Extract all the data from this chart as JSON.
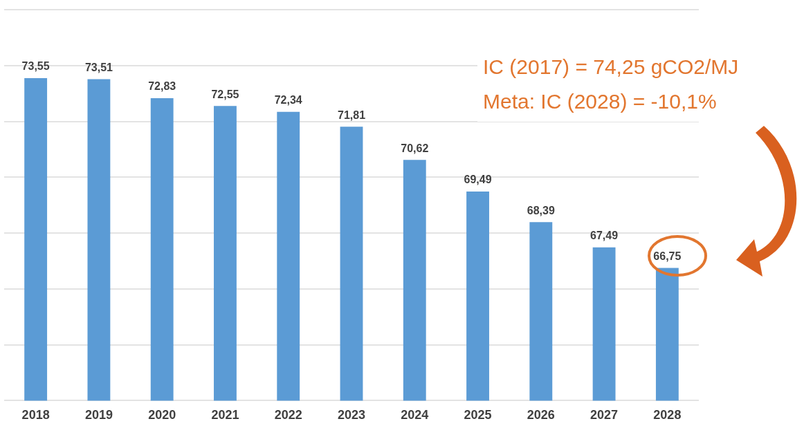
{
  "chart_data": {
    "type": "bar",
    "categories": [
      "2018",
      "2019",
      "2020",
      "2021",
      "2022",
      "2023",
      "2024",
      "2025",
      "2026",
      "2027",
      "2028"
    ],
    "values": [
      73.55,
      73.51,
      72.83,
      72.55,
      72.34,
      71.81,
      70.62,
      69.49,
      68.39,
      67.49,
      66.75
    ],
    "value_labels": [
      "73,55",
      "73,51",
      "72,83",
      "72,55",
      "72,34",
      "71,81",
      "70,62",
      "69,49",
      "68,39",
      "67,49",
      "66,75"
    ],
    "color": "#5b9bd5",
    "ylim": [
      62,
      76
    ],
    "yticks": [
      {
        "value": 62,
        "label": null
      },
      {
        "value": 64,
        "label": null
      },
      {
        "value": 66,
        "label": null
      },
      {
        "value": 68,
        "label": null
      },
      {
        "value": 70,
        "label": null
      },
      {
        "value": 72,
        "label": null
      },
      {
        "value": 74,
        "label": null
      },
      {
        "value": 76,
        "label": null
      }
    ],
    "grid": "y",
    "tick_labels": "x",
    "legend": false,
    "annotations": [
      "IC (2017) = 74,25 gCO2/MJ",
      "Meta: IC (2028) = -10,1%"
    ]
  }
}
